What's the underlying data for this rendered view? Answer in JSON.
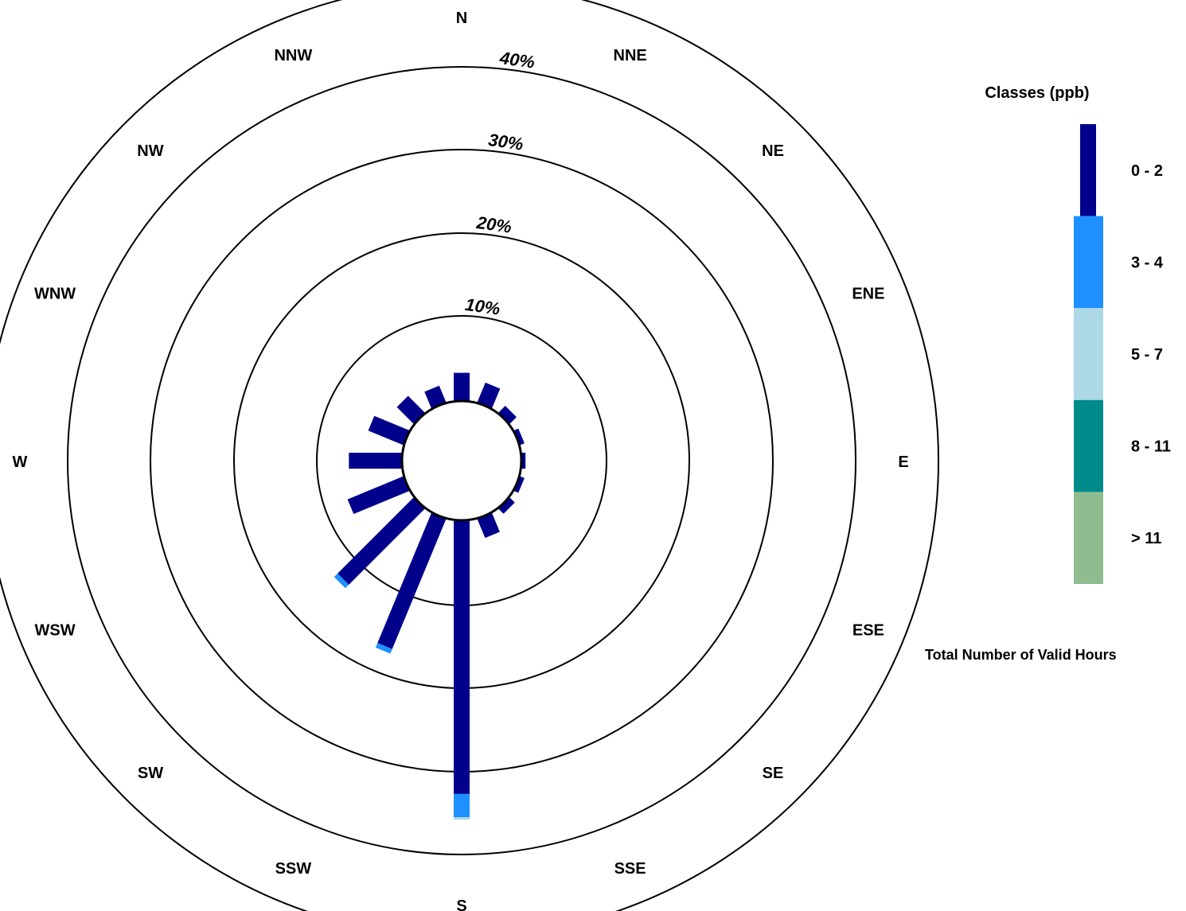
{
  "chart_data": {
    "type": "wind-rose",
    "legend": {
      "title": "Classes (ppb)",
      "classes": [
        {
          "label": "0 - 2",
          "color": "#00008B"
        },
        {
          "label": "3 - 4",
          "color": "#1E90FF"
        },
        {
          "label": "5 - 7",
          "color": "#ADD8E6"
        },
        {
          "label": "8 - 11",
          "color": "#008B8B"
        },
        {
          "label": "> 11",
          "color": "#8FBC8F"
        }
      ]
    },
    "rings": [
      10,
      20,
      30,
      40
    ],
    "ring_labels": [
      "10%",
      "20%",
      "30%",
      "40%"
    ],
    "directions": [
      "N",
      "NNE",
      "NE",
      "ENE",
      "E",
      "ESE",
      "SE",
      "SSE",
      "S",
      "SSW",
      "SW",
      "WSW",
      "W",
      "WNW",
      "NW",
      "NNW"
    ],
    "series": [
      {
        "name": "0 - 2",
        "values": [
          3.4,
          2.6,
          1.2,
          0.6,
          0.5,
          0.6,
          0.9,
          2.5,
          33.0,
          17.0,
          13.0,
          7.3,
          6.4,
          4.6,
          2.9,
          2.2
        ]
      },
      {
        "name": "3 - 4",
        "values": [
          0,
          0,
          0,
          0,
          0,
          0,
          0,
          0,
          2.8,
          0.6,
          0.6,
          0,
          0,
          0,
          0,
          0
        ]
      },
      {
        "name": "5 - 7",
        "values": [
          0,
          0,
          0,
          0,
          0,
          0,
          0,
          0,
          0.3,
          0,
          0,
          0,
          0,
          0,
          0,
          0
        ]
      },
      {
        "name": "8 - 11",
        "values": [
          0,
          0,
          0,
          0,
          0,
          0,
          0,
          0,
          0,
          0,
          0,
          0,
          0,
          0,
          0,
          0
        ]
      },
      {
        "name": "> 11",
        "values": [
          0,
          0,
          0,
          0,
          0,
          0,
          0,
          0,
          0,
          0,
          0,
          0,
          0,
          0,
          0,
          0
        ]
      }
    ],
    "footer_text": "Total Number of Valid Hours"
  }
}
